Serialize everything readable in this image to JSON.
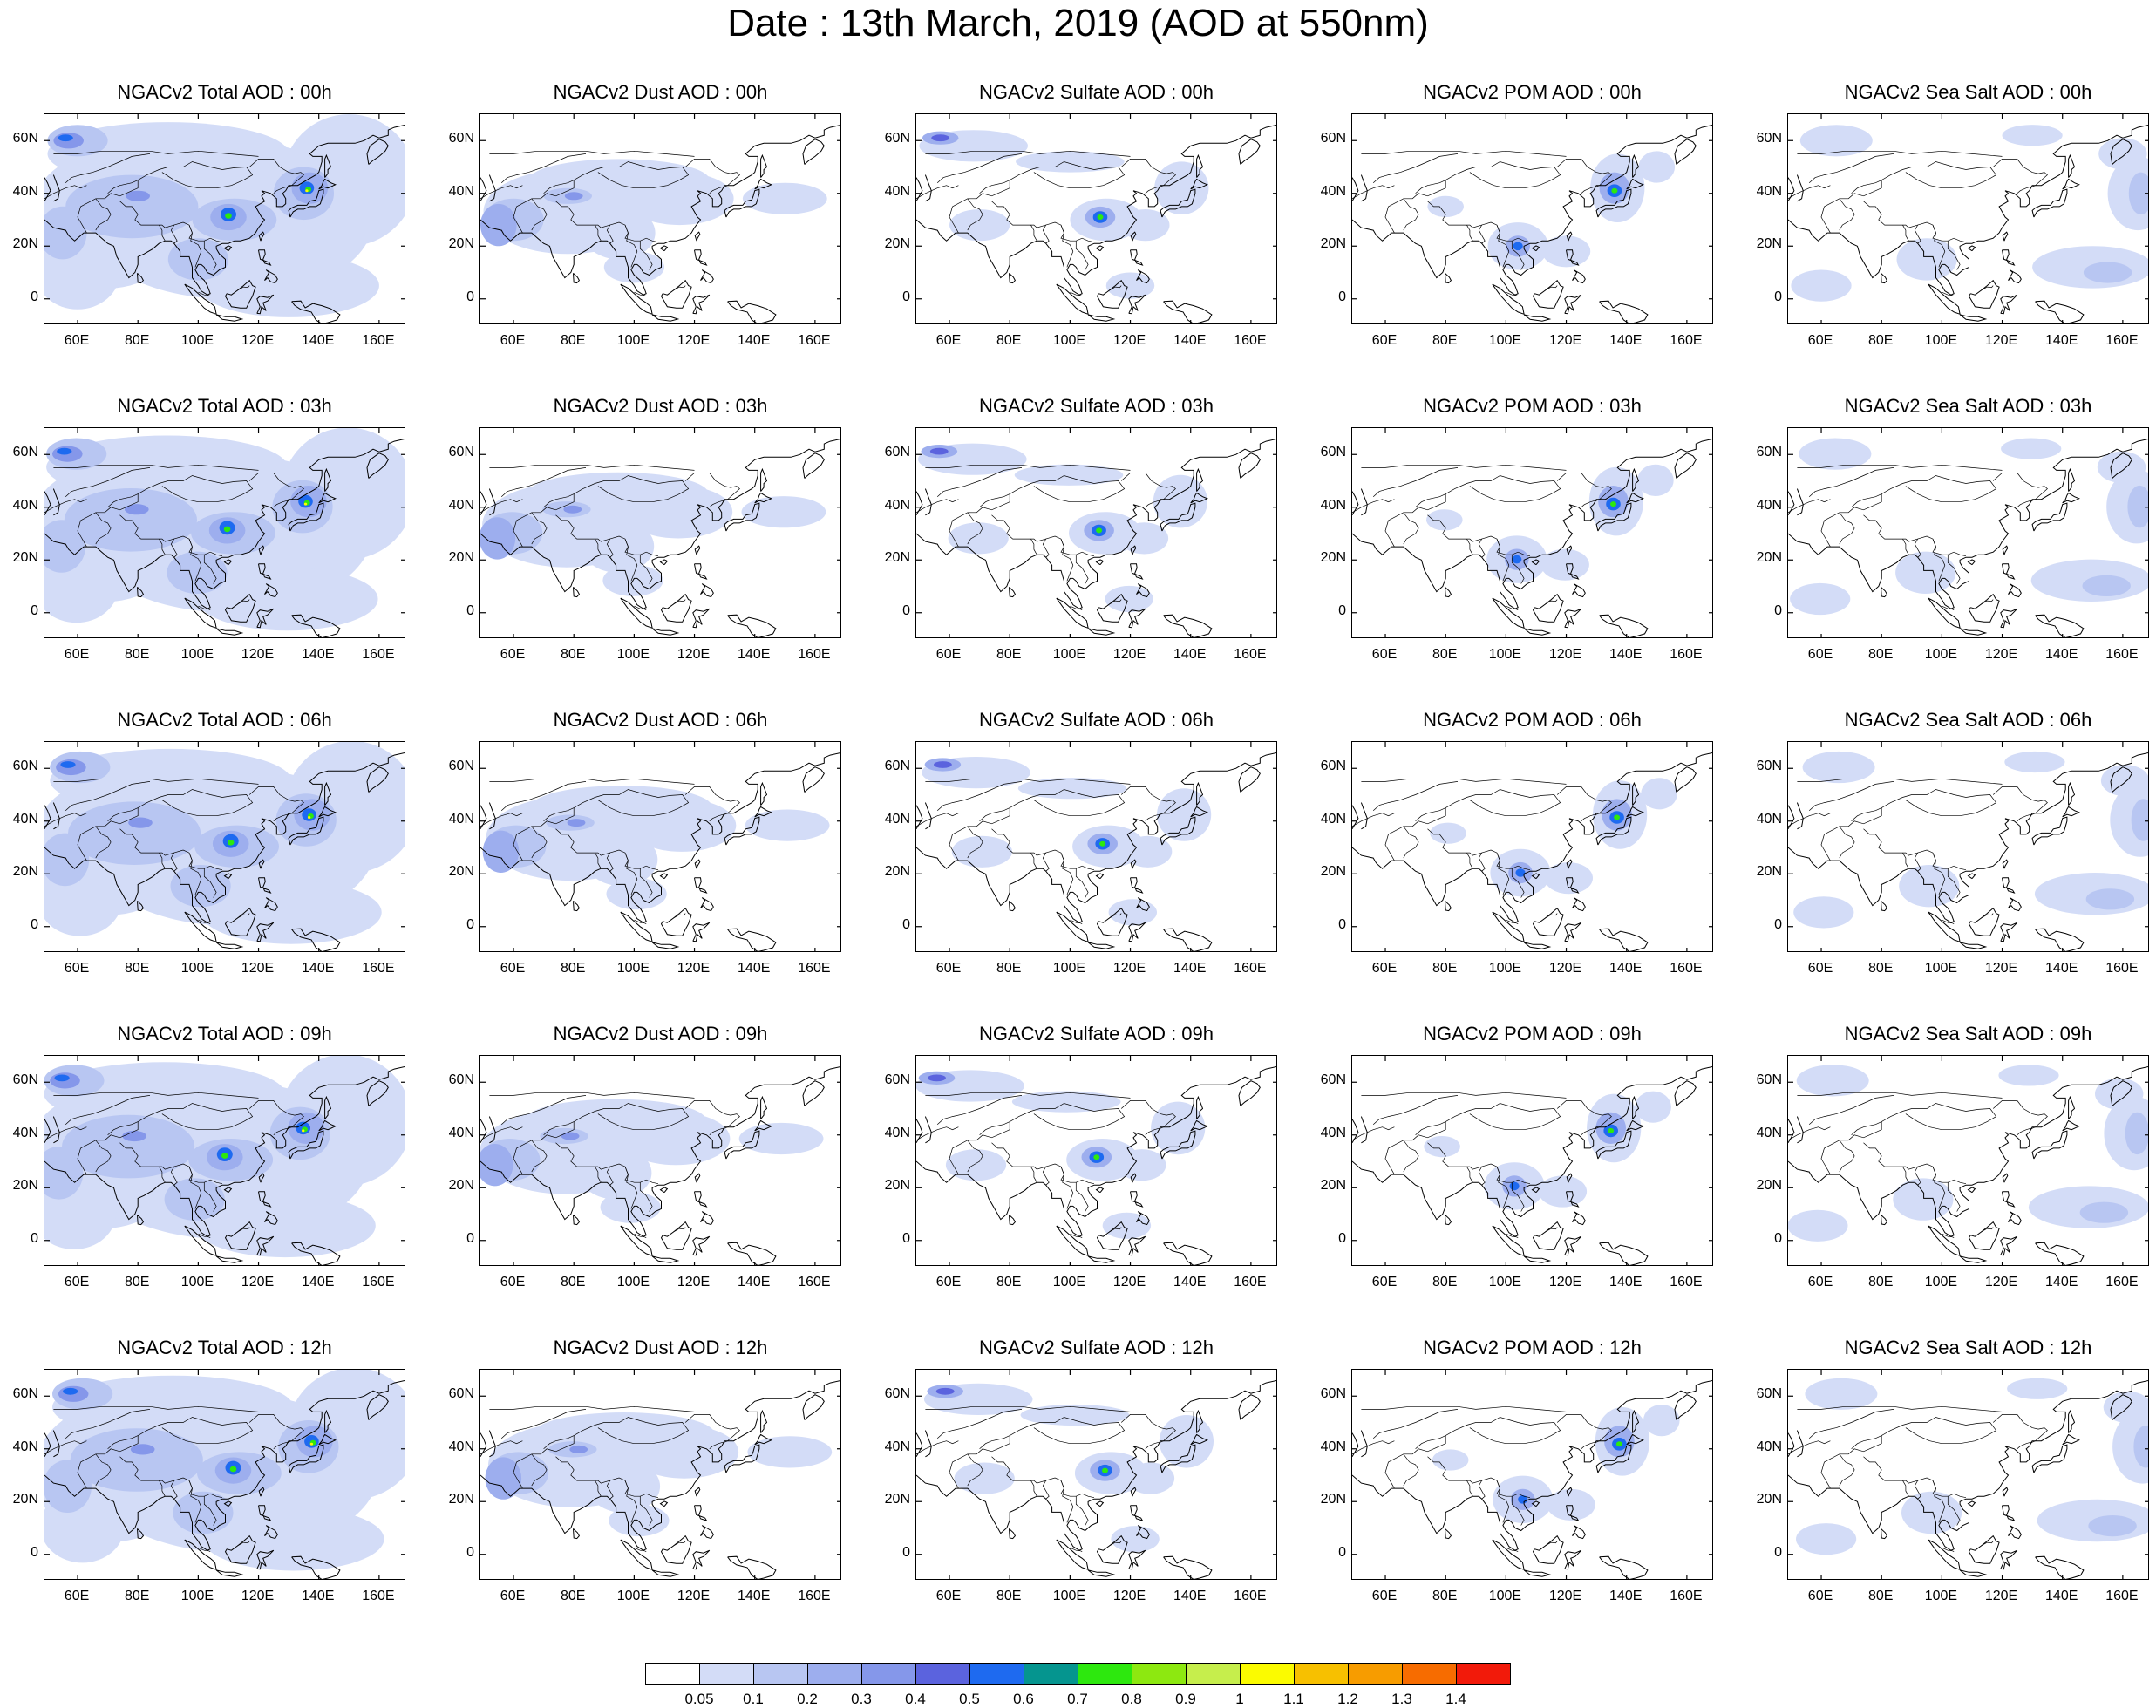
{
  "title": "Date : 13th March, 2019 (AOD at 550nm)",
  "map_axes": {
    "lat_labels": [
      "60N",
      "40N",
      "20N",
      "0"
    ],
    "lat_values": [
      60,
      40,
      20,
      0
    ],
    "lat_range": [
      -10,
      70
    ],
    "lon_labels": [
      "60E",
      "80E",
      "100E",
      "120E",
      "140E",
      "160E"
    ],
    "lon_values": [
      60,
      80,
      100,
      120,
      140,
      160
    ],
    "lon_range": [
      49,
      169
    ]
  },
  "panels": [
    [
      "NGACv2 Total AOD : 00h",
      "NGACv2 Dust AOD : 00h",
      "NGACv2 Sulfate AOD : 00h",
      "NGACv2 POM AOD : 00h",
      "NGACv2 Sea Salt AOD : 00h"
    ],
    [
      "NGACv2 Total AOD : 03h",
      "NGACv2 Dust AOD : 03h",
      "NGACv2 Sulfate AOD : 03h",
      "NGACv2 POM AOD : 03h",
      "NGACv2 Sea Salt AOD : 03h"
    ],
    [
      "NGACv2 Total AOD : 06h",
      "NGACv2 Dust AOD : 06h",
      "NGACv2 Sulfate AOD : 06h",
      "NGACv2 POM AOD : 06h",
      "NGACv2 Sea Salt AOD : 06h"
    ],
    [
      "NGACv2 Total AOD : 09h",
      "NGACv2 Dust AOD : 09h",
      "NGACv2 Sulfate AOD : 09h",
      "NGACv2 POM AOD : 09h",
      "NGACv2 Sea Salt  AOD : 09h"
    ],
    [
      "NGACv2 Total AOD  : 12h",
      "NGACv2 Dust AOD : 12h",
      "NGACv2 Sulfate AOD : 12h",
      "NGACv2 POM  AOD : 12h",
      "NGACv2 Sea Salt  AOD : 12h"
    ]
  ],
  "colorbar": {
    "labels": [
      "0.05",
      "0.1",
      "0.2",
      "0.3",
      "0.4",
      "0.5",
      "0.6",
      "0.7",
      "0.8",
      "0.9",
      "1",
      "1.1",
      "1.2",
      "1.3",
      "1.4"
    ],
    "colors": [
      "#ffffff",
      "#d3dcf7",
      "#b8c6f2",
      "#9daeee",
      "#8597ea",
      "#5b63de",
      "#1e6af0",
      "#05958f",
      "#2de80e",
      "#8de810",
      "#c6ee4c",
      "#fbfb00",
      "#f7c000",
      "#f79c00",
      "#f76c00",
      "#f21a0a"
    ]
  },
  "colors": {
    "land_outline": "#000000",
    "field_light": "#d3dcf7",
    "field_mid": "#b8c6f2",
    "field_strong": "#9daeee",
    "field_deep": "#8597ea",
    "hotspot_blue": "#1e6af0",
    "hotspot_green": "#2de80e",
    "hotspot_yellow": "#fbfb00"
  }
}
